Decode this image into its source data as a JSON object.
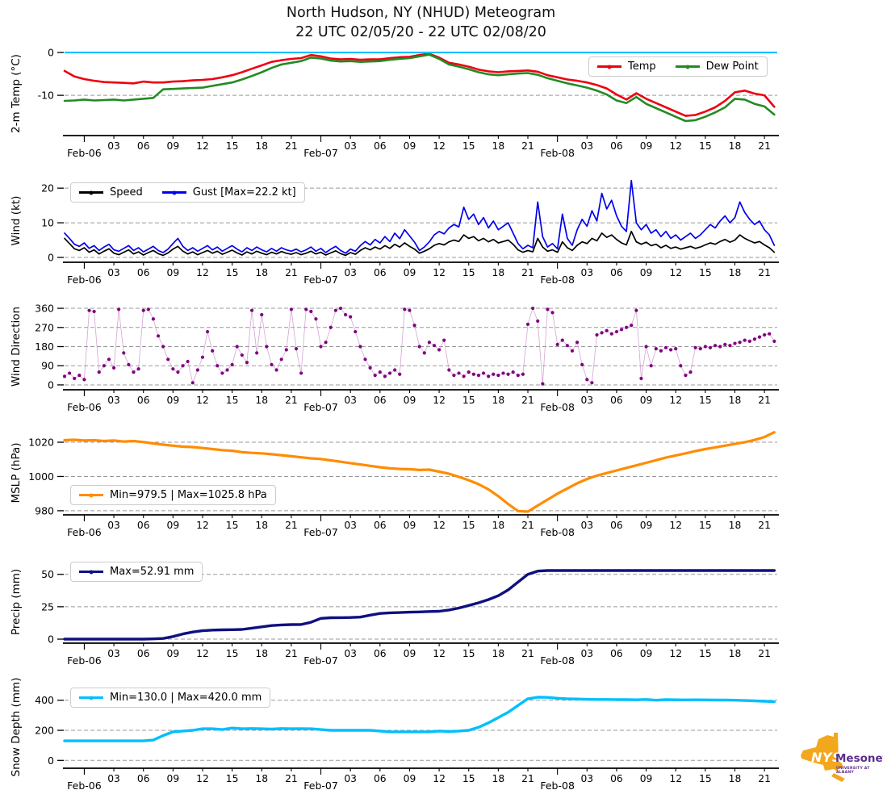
{
  "title": {
    "line1": "North Hudson, NY (NHUD) Meteogram",
    "line2": "22 UTC 02/05/20 - 22 UTC 02/08/20"
  },
  "logo": {
    "nys": "NYS",
    "mesonet": "Mesonet",
    "tagline": "UNIVERSITY AT ALBANY",
    "orange": "#f2a71f",
    "purple": "#5b2d8e"
  },
  "x_axis": {
    "xlim_hours": [
      0,
      72.3
    ],
    "minor_ticks": [
      {
        "t": 5,
        "label": "03"
      },
      {
        "t": 8,
        "label": "06"
      },
      {
        "t": 11,
        "label": "09"
      },
      {
        "t": 14,
        "label": "12"
      },
      {
        "t": 17,
        "label": "15"
      },
      {
        "t": 20,
        "label": "18"
      },
      {
        "t": 23,
        "label": "21"
      },
      {
        "t": 29,
        "label": "03"
      },
      {
        "t": 32,
        "label": "06"
      },
      {
        "t": 35,
        "label": "09"
      },
      {
        "t": 38,
        "label": "12"
      },
      {
        "t": 41,
        "label": "15"
      },
      {
        "t": 44,
        "label": "18"
      },
      {
        "t": 47,
        "label": "21"
      },
      {
        "t": 53,
        "label": "03"
      },
      {
        "t": 56,
        "label": "06"
      },
      {
        "t": 59,
        "label": "09"
      },
      {
        "t": 62,
        "label": "12"
      },
      {
        "t": 65,
        "label": "15"
      },
      {
        "t": 68,
        "label": "18"
      },
      {
        "t": 71,
        "label": "21"
      }
    ],
    "major_ticks": [
      {
        "t": 2,
        "label": "Feb-06"
      },
      {
        "t": 26,
        "label": "Feb-07"
      },
      {
        "t": 50,
        "label": "Feb-08"
      }
    ]
  },
  "chart_data": [
    {
      "id": "temp",
      "type": "line",
      "ylabel": "2-m Temp (°C)",
      "yticks": [
        0,
        -10
      ],
      "ylim": [
        -19.4,
        0.2
      ],
      "x_step_hours": 1,
      "freezing_line": {
        "value": 0,
        "color": "#00bfff"
      },
      "legend": {
        "position": "top-right",
        "entries": [
          {
            "label": "Temp",
            "color": "#ee0011"
          },
          {
            "label": "Dew Point",
            "color": "#228b22"
          }
        ]
      },
      "series": [
        {
          "name": "Temp",
          "color": "#ee0011",
          "width": 2.6,
          "values": [
            -4.3,
            -5.6,
            -6.2,
            -6.6,
            -6.9,
            -7.0,
            -7.1,
            -7.2,
            -6.8,
            -7.0,
            -7.0,
            -6.8,
            -6.7,
            -6.5,
            -6.4,
            -6.2,
            -5.8,
            -5.3,
            -4.6,
            -3.8,
            -3.0,
            -2.2,
            -1.8,
            -1.5,
            -1.3,
            -0.6,
            -0.9,
            -1.4,
            -1.6,
            -1.5,
            -1.7,
            -1.6,
            -1.6,
            -1.3,
            -1.1,
            -1.0,
            -0.6,
            -0.3,
            -1.2,
            -2.4,
            -2.8,
            -3.3,
            -4.0,
            -4.4,
            -4.6,
            -4.4,
            -4.3,
            -4.2,
            -4.5,
            -5.3,
            -5.8,
            -6.3,
            -6.6,
            -7.0,
            -7.6,
            -8.4,
            -9.8,
            -11.0,
            -9.5,
            -10.8,
            -11.8,
            -12.8,
            -13.8,
            -14.8,
            -14.6,
            -13.8,
            -12.8,
            -11.3,
            -9.3,
            -8.9,
            -9.6,
            -10.0,
            -12.7
          ]
        },
        {
          "name": "Dew Point",
          "color": "#228b22",
          "width": 2.6,
          "values": [
            -11.3,
            -11.2,
            -11.0,
            -11.2,
            -11.1,
            -11.0,
            -11.2,
            -11.0,
            -10.8,
            -10.6,
            -8.6,
            -8.5,
            -8.4,
            -8.3,
            -8.2,
            -7.8,
            -7.4,
            -7.0,
            -6.3,
            -5.5,
            -4.6,
            -3.6,
            -2.8,
            -2.4,
            -2.0,
            -1.2,
            -1.4,
            -1.9,
            -2.1,
            -2.0,
            -2.2,
            -2.1,
            -2.0,
            -1.7,
            -1.5,
            -1.3,
            -0.9,
            -0.5,
            -1.5,
            -2.8,
            -3.3,
            -3.9,
            -4.6,
            -5.1,
            -5.3,
            -5.1,
            -4.9,
            -4.8,
            -5.2,
            -6.0,
            -6.6,
            -7.2,
            -7.7,
            -8.2,
            -8.9,
            -9.8,
            -11.2,
            -11.8,
            -10.4,
            -12.0,
            -13.0,
            -14.0,
            -15.0,
            -16.0,
            -15.8,
            -15.0,
            -14.0,
            -12.8,
            -10.8,
            -11.0,
            -12.0,
            -12.6,
            -14.5
          ]
        }
      ]
    },
    {
      "id": "wind",
      "type": "line",
      "ylabel": "Wind (kt)",
      "yticks": [
        0,
        10,
        20
      ],
      "ylim": [
        -1.4,
        22.6
      ],
      "x_step_hours": 0.5,
      "legend": {
        "position": "top-left",
        "entries": [
          {
            "label": "Speed",
            "color": "#000000"
          },
          {
            "label": "Gust [Max=22.2 kt]",
            "color": "#0000ee"
          }
        ]
      },
      "series": [
        {
          "name": "Gust",
          "color": "#0000ee",
          "width": 1.7,
          "values": [
            7.0,
            5.5,
            3.8,
            3.2,
            4.2,
            2.6,
            3.4,
            2.0,
            3.0,
            3.8,
            2.2,
            1.8,
            2.6,
            3.4,
            2.0,
            2.8,
            1.6,
            2.4,
            3.2,
            2.0,
            1.4,
            2.4,
            4.0,
            5.5,
            3.2,
            2.0,
            2.8,
            1.8,
            2.6,
            3.4,
            2.2,
            3.0,
            1.8,
            2.6,
            3.4,
            2.4,
            1.6,
            2.8,
            2.0,
            3.0,
            2.2,
            1.6,
            2.6,
            1.8,
            2.8,
            2.2,
            1.8,
            2.4,
            1.6,
            2.2,
            3.0,
            1.8,
            2.6,
            1.4,
            2.4,
            3.2,
            2.0,
            1.2,
            2.4,
            1.8,
            3.4,
            4.6,
            3.6,
            5.2,
            4.2,
            6.0,
            4.6,
            7.0,
            5.4,
            8.0,
            6.2,
            4.4,
            2.0,
            3.0,
            4.5,
            6.5,
            7.5,
            6.8,
            8.5,
            9.5,
            8.8,
            14.5,
            11.0,
            12.5,
            9.5,
            11.5,
            8.5,
            10.5,
            8.0,
            9.0,
            10.0,
            7.0,
            4.0,
            2.5,
            3.5,
            2.8,
            16.0,
            6.0,
            3.0,
            4.0,
            2.5,
            12.5,
            5.5,
            3.5,
            8.0,
            11.0,
            9.0,
            13.5,
            10.5,
            18.5,
            14.0,
            16.5,
            12.0,
            9.0,
            7.5,
            22.2,
            10.0,
            8.0,
            9.5,
            7.0,
            8.0,
            6.0,
            7.5,
            5.5,
            6.5,
            5.0,
            6.0,
            7.0,
            5.5,
            6.5,
            8.0,
            9.5,
            8.5,
            10.5,
            12.0,
            10.0,
            11.5,
            16.0,
            13.0,
            11.0,
            9.5,
            10.5,
            8.0,
            6.5,
            3.5
          ]
        },
        {
          "name": "Speed",
          "color": "#000000",
          "width": 1.7,
          "values": [
            5.5,
            4.0,
            2.5,
            2.0,
            2.8,
            1.5,
            2.2,
            1.0,
            1.8,
            2.5,
            1.2,
            0.8,
            1.5,
            2.2,
            1.0,
            1.6,
            0.7,
            1.4,
            2.0,
            1.1,
            0.6,
            1.3,
            2.4,
            3.2,
            1.8,
            1.0,
            1.6,
            0.8,
            1.4,
            2.0,
            1.2,
            1.8,
            0.9,
            1.5,
            2.1,
            1.3,
            0.7,
            1.6,
            1.0,
            1.8,
            1.2,
            0.8,
            1.5,
            1.0,
            1.7,
            1.2,
            0.9,
            1.4,
            0.8,
            1.2,
            1.8,
            1.0,
            1.5,
            0.7,
            1.3,
            1.9,
            1.1,
            0.6,
            1.4,
            0.9,
            2.0,
            2.8,
            2.2,
            3.0,
            2.4,
            3.4,
            2.6,
            3.8,
            3.0,
            4.2,
            3.2,
            2.4,
            1.2,
            1.8,
            2.5,
            3.5,
            4.0,
            3.6,
            4.5,
            5.0,
            4.6,
            6.5,
            5.5,
            6.0,
            4.8,
            5.5,
            4.5,
            5.2,
            4.2,
            4.6,
            5.0,
            3.8,
            2.2,
            1.5,
            2.0,
            1.6,
            5.5,
            3.0,
            1.8,
            2.2,
            1.5,
            4.5,
            2.8,
            2.0,
            3.5,
            4.5,
            4.0,
            5.5,
            4.8,
            7.0,
            5.8,
            6.5,
            5.2,
            4.2,
            3.6,
            7.5,
            4.5,
            3.8,
            4.4,
            3.4,
            3.8,
            2.8,
            3.5,
            2.6,
            3.0,
            2.4,
            2.8,
            3.2,
            2.6,
            3.0,
            3.6,
            4.2,
            3.8,
            4.6,
            5.2,
            4.4,
            5.0,
            6.5,
            5.5,
            4.8,
            4.2,
            4.6,
            3.6,
            2.8,
            1.5
          ]
        }
      ]
    },
    {
      "id": "wind-direction",
      "type": "scatter-line",
      "ylabel": "Wind Direction",
      "yticks": [
        0,
        90,
        180,
        270,
        360
      ],
      "ylim": [
        -23,
        383
      ],
      "x_step_hours": 0.5,
      "series": [
        {
          "name": "Wind Direction",
          "color": "#800080",
          "line_color": "#c687c6",
          "values": [
            40,
            55,
            30,
            45,
            25,
            350,
            345,
            60,
            90,
            120,
            80,
            355,
            150,
            95,
            60,
            75,
            350,
            355,
            310,
            230,
            180,
            120,
            75,
            60,
            90,
            110,
            10,
            70,
            130,
            250,
            160,
            90,
            55,
            70,
            95,
            180,
            140,
            105,
            350,
            150,
            330,
            180,
            95,
            70,
            120,
            165,
            355,
            170,
            55,
            355,
            345,
            310,
            180,
            200,
            270,
            350,
            360,
            330,
            320,
            250,
            180,
            120,
            80,
            45,
            60,
            40,
            55,
            70,
            50,
            355,
            350,
            280,
            180,
            150,
            200,
            185,
            165,
            210,
            70,
            45,
            55,
            40,
            60,
            50,
            45,
            55,
            40,
            50,
            45,
            55,
            50,
            60,
            45,
            50,
            285,
            360,
            300,
            5,
            355,
            340,
            190,
            210,
            185,
            160,
            200,
            95,
            25,
            10,
            235,
            245,
            255,
            240,
            250,
            260,
            270,
            280,
            350,
            30,
            180,
            90,
            170,
            160,
            175,
            165,
            170,
            90,
            45,
            60,
            175,
            170,
            180,
            175,
            185,
            180,
            190,
            185,
            195,
            200,
            210,
            205,
            215,
            225,
            235,
            240,
            205
          ]
        }
      ]
    },
    {
      "id": "mslp",
      "type": "line",
      "ylabel": "MSLP (hPa)",
      "yticks": [
        980,
        1000,
        1020
      ],
      "ylim": [
        977.6,
        1026.6
      ],
      "x_step_hours": 1,
      "legend": {
        "position": "bottom-left",
        "entries": [
          {
            "label": "Min=979.5 | Max=1025.8 hPa",
            "color": "#ff8c00"
          }
        ]
      },
      "series": [
        {
          "name": "MSLP",
          "color": "#ff8c00",
          "width": 3.2,
          "values": [
            1021.2,
            1021.4,
            1021.0,
            1021.2,
            1020.7,
            1021.0,
            1020.4,
            1020.7,
            1020.1,
            1019.3,
            1018.6,
            1018.0,
            1017.4,
            1017.2,
            1016.6,
            1016.0,
            1015.4,
            1015.0,
            1014.2,
            1013.8,
            1013.5,
            1013.0,
            1012.4,
            1011.8,
            1011.2,
            1010.6,
            1010.2,
            1009.4,
            1008.6,
            1007.8,
            1007.0,
            1006.2,
            1005.4,
            1004.8,
            1004.4,
            1004.2,
            1003.8,
            1004.0,
            1002.8,
            1001.6,
            999.8,
            997.8,
            995.5,
            992.5,
            988.5,
            983.9,
            979.8,
            979.5,
            983.0,
            986.5,
            990.0,
            993.0,
            996.0,
            998.5,
            1000.5,
            1002.0,
            1003.5,
            1005.0,
            1006.5,
            1008.0,
            1009.5,
            1011.0,
            1012.3,
            1013.5,
            1014.8,
            1016.0,
            1017.0,
            1018.0,
            1019.0,
            1020.0,
            1021.3,
            1023.0,
            1025.8
          ]
        }
      ]
    },
    {
      "id": "precip",
      "type": "line",
      "ylabel": "Precip (mm)",
      "yticks": [
        0,
        25,
        50
      ],
      "ylim": [
        -3.1,
        60.4
      ],
      "x_step_hours": 1,
      "legend": {
        "position": "top-left",
        "entries": [
          {
            "label": "Max=52.91 mm",
            "color": "#101080"
          }
        ]
      },
      "series": [
        {
          "name": "Precip",
          "color": "#101080",
          "width": 3.4,
          "values": [
            0,
            0,
            0,
            0,
            0,
            0,
            0,
            0,
            0,
            0.2,
            0.5,
            2,
            4,
            5.5,
            6.5,
            7,
            7.2,
            7.3,
            7.5,
            8.5,
            9.5,
            10.5,
            11,
            11.2,
            11.3,
            13,
            16,
            16.5,
            16.6,
            16.7,
            17,
            18.5,
            19.8,
            20.3,
            20.5,
            20.8,
            21,
            21.3,
            21.5,
            22.5,
            24,
            26,
            28,
            30.5,
            33.5,
            38,
            44,
            50,
            52.5,
            52.91,
            52.91,
            52.91,
            52.91,
            52.91,
            52.91,
            52.91,
            52.91,
            52.91,
            52.91,
            52.91,
            52.91,
            52.91,
            52.91,
            52.91,
            52.91,
            52.91,
            52.91,
            52.91,
            52.91,
            52.91,
            52.91,
            52.91,
            52.91
          ]
        }
      ]
    },
    {
      "id": "snow-depth",
      "type": "line",
      "ylabel": "Snow Depth (mm)",
      "yticks": [
        0,
        200,
        400
      ],
      "ylim": [
        -52,
        495
      ],
      "x_step_hours": 1,
      "legend": {
        "position": "top-left",
        "entries": [
          {
            "label": "Min=130.0 | Max=420.0 mm",
            "color": "#00bfff"
          }
        ]
      },
      "series": [
        {
          "name": "Snow Depth",
          "color": "#00bfff",
          "width": 3.4,
          "values": [
            130,
            130,
            130,
            130,
            130,
            130,
            130,
            130,
            130,
            135,
            165,
            190,
            195,
            200,
            210,
            210,
            205,
            215,
            210,
            212,
            210,
            208,
            212,
            210,
            211,
            210,
            205,
            200,
            200,
            200,
            200,
            200,
            195,
            190,
            190,
            190,
            190,
            190,
            195,
            192,
            195,
            200,
            220,
            250,
            285,
            320,
            365,
            410,
            420,
            419,
            413,
            410,
            408,
            406,
            405,
            405,
            404,
            404,
            403,
            405,
            400,
            404,
            403,
            402,
            403,
            402,
            401,
            401,
            400,
            398,
            396,
            393,
            390
          ]
        }
      ]
    }
  ]
}
